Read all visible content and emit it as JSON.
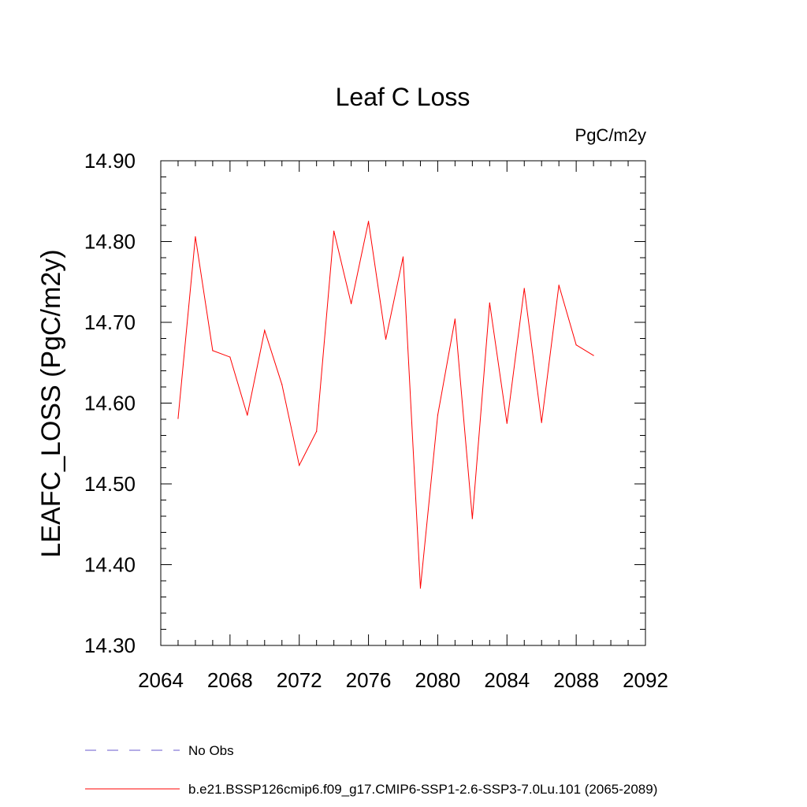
{
  "chart_data": {
    "type": "line",
    "title": "Leaf C Loss",
    "units_label": "PgC/m2y",
    "ylabel": "LEAFC_LOSS  (PgC/m2y)",
    "xlabel": "",
    "xlim": [
      2064,
      2092
    ],
    "ylim": [
      14.3,
      14.9
    ],
    "x_ticks": [
      2064,
      2068,
      2072,
      2076,
      2080,
      2084,
      2088,
      2092
    ],
    "x_tick_labels": [
      "2064",
      "2068",
      "2072",
      "2076",
      "2080",
      "2084",
      "2088",
      "2092"
    ],
    "y_ticks": [
      14.3,
      14.4,
      14.5,
      14.6,
      14.7,
      14.8,
      14.9
    ],
    "y_tick_labels": [
      "14.30",
      "14.40",
      "14.50",
      "14.60",
      "14.70",
      "14.80",
      "14.90"
    ],
    "grid": false,
    "legend_position": "bottom",
    "series": [
      {
        "name": "b.e21.BSSP126cmip6.f09_g17.CMIP6-SSP1-2.6-SSP3-7.0Lu.101 (2065-2089)",
        "color": "#ff0000",
        "style": "solid",
        "x": [
          2065,
          2066,
          2067,
          2068,
          2069,
          2070,
          2071,
          2072,
          2073,
          2074,
          2075,
          2076,
          2077,
          2078,
          2079,
          2080,
          2081,
          2082,
          2083,
          2084,
          2085,
          2086,
          2087,
          2088,
          2089
        ],
        "y": [
          14.581,
          14.806,
          14.665,
          14.657,
          14.585,
          14.69,
          14.623,
          14.523,
          14.565,
          14.813,
          14.723,
          14.825,
          14.679,
          14.781,
          14.371,
          14.585,
          14.704,
          14.457,
          14.724,
          14.575,
          14.742,
          14.576,
          14.746,
          14.672,
          14.659
        ]
      }
    ],
    "legend": [
      {
        "label": "No Obs",
        "color": "#6a5acd",
        "style": "dashed"
      },
      {
        "label": "b.e21.BSSP126cmip6.f09_g17.CMIP6-SSP1-2.6-SSP3-7.0Lu.101 (2065-2089)",
        "color": "#ff0000",
        "style": "solid"
      }
    ]
  }
}
